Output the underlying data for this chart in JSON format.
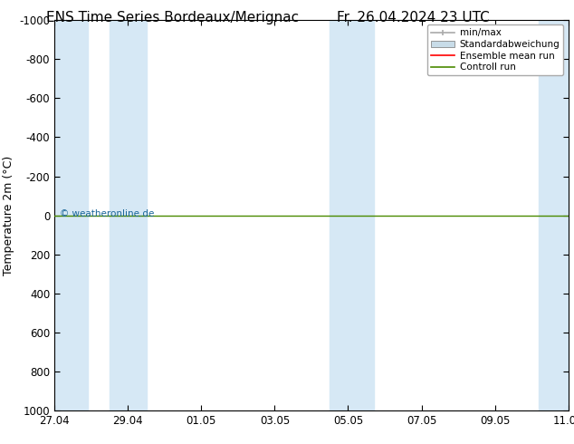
{
  "title_left": "ENS Time Series Bordeaux/Merignac",
  "title_right": "Fr. 26.04.2024 23 UTC",
  "ylabel": "Temperature 2m (°C)",
  "watermark": "© weatheronline.de",
  "ylim": [
    -1000,
    1000
  ],
  "yticks": [
    -1000,
    -800,
    -600,
    -400,
    -200,
    0,
    200,
    400,
    600,
    800,
    1000
  ],
  "x_start": 0,
  "x_end": 14,
  "xtick_labels": [
    "27.04",
    "29.04",
    "01.05",
    "03.05",
    "05.05",
    "07.05",
    "09.05",
    "11.05"
  ],
  "xtick_positions": [
    0,
    2,
    4,
    6,
    8,
    10,
    12,
    14
  ],
  "blue_bands": [
    [
      0.0,
      0.9
    ],
    [
      1.5,
      2.5
    ],
    [
      7.5,
      8.7
    ],
    [
      13.2,
      14.0
    ]
  ],
  "green_line_y": 0,
  "control_run_color": "#4a8a00",
  "ensemble_mean_color": "#ff0000",
  "min_max_color": "#aaaaaa",
  "stddev_color": "#c8dce8",
  "background_color": "#ffffff",
  "band_color": "#d6e8f5",
  "legend_entries": [
    "min/max",
    "Standardabweichung",
    "Ensemble mean run",
    "Controll run"
  ],
  "title_fontsize": 11,
  "axis_fontsize": 9,
  "tick_fontsize": 8.5,
  "watermark_color": "#1a6699"
}
